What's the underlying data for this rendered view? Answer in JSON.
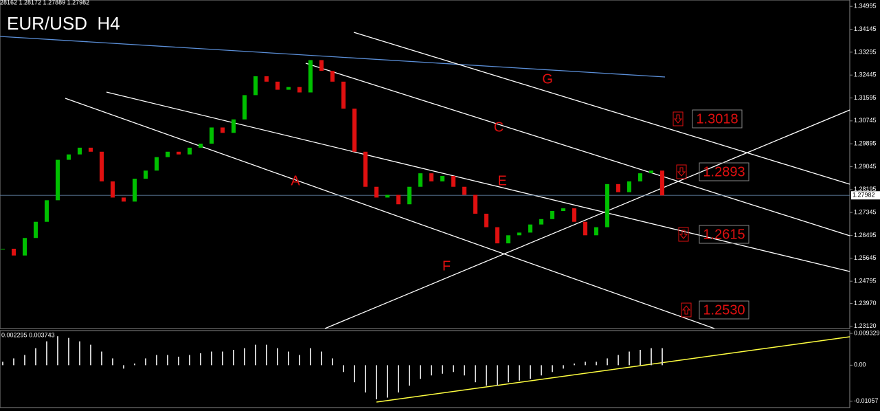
{
  "chart_data": {
    "type": "candlestick",
    "title": "EUR/USD  H4",
    "header": "28162 1.28172 1.27889 1.27982",
    "current_price": 1.27982,
    "ylim": [
      1.2304,
      1.3523
    ],
    "yticks": [
      1.34995,
      1.34145,
      1.33295,
      1.32445,
      1.31595,
      1.30745,
      1.29895,
      1.29045,
      1.28195,
      1.27345,
      1.26495,
      1.25645,
      1.24795,
      {
        "value": 1.2397,
        "label": "1.23970"
      },
      {
        "value": 1.2312,
        "label": "1.23120"
      }
    ],
    "up_color": "#00c000",
    "down_color": "#e01010",
    "closes": [
      1.26,
      1.2575,
      1.264,
      1.27,
      1.278,
      1.293,
      1.295,
      1.2975,
      1.296,
      1.285,
      1.279,
      1.2775,
      1.286,
      1.289,
      1.294,
      1.296,
      1.295,
      1.2975,
      1.299,
      1.305,
      1.303,
      1.308,
      1.317,
      1.324,
      1.322,
      1.319,
      1.32,
      1.318,
      1.33,
      1.326,
      1.322,
      1.312,
      1.296,
      1.283,
      1.279,
      1.28,
      1.2765,
      1.283,
      1.288,
      1.285,
      1.287,
      1.283,
      1.28,
      1.273,
      1.268,
      1.262,
      1.265,
      1.266,
      1.269,
      1.271,
      1.274,
      1.275,
      1.27,
      1.265,
      1.268,
      1.284,
      1.281,
      1.285,
      1.288,
      1.289,
      1.2798
    ],
    "line_labels": [
      "G",
      "C",
      "E",
      "A",
      "F"
    ],
    "levels": [
      1.3018,
      1.2893,
      1.2615,
      {
        "value": 1.253,
        "label": "1.2530"
      }
    ],
    "level_arrows": [
      "down",
      "down",
      "down",
      "up"
    ],
    "macd": {
      "header": "0.002295 0.003743",
      "ylim": [
        -0.01242,
        0.01015
      ],
      "yticks": [
        0.009329,
        {
          "value": 0,
          "label": "0.00"
        },
        -0.01057
      ],
      "values": [
        0.001,
        0.002,
        0.003,
        0.005,
        0.007,
        0.0085,
        0.008,
        0.007,
        0.006,
        0.004,
        0.002,
        -0.001,
        0.0005,
        0.002,
        0.003,
        0.003,
        0.0025,
        0.003,
        0.0035,
        0.004,
        0.004,
        0.0045,
        0.005,
        0.006,
        0.006,
        0.005,
        0.004,
        0.003,
        0.005,
        0.004,
        0.002,
        -0.002,
        -0.005,
        -0.008,
        -0.01,
        -0.0095,
        -0.008,
        -0.006,
        -0.004,
        -0.003,
        -0.0025,
        -0.002,
        -0.003,
        -0.005,
        -0.006,
        -0.006,
        -0.005,
        -0.0045,
        -0.004,
        -0.003,
        -0.002,
        -0.001,
        0.0005,
        0.001,
        0.001,
        0.002,
        0.003,
        0.004,
        0.0045,
        0.005,
        0.005
      ]
    }
  }
}
